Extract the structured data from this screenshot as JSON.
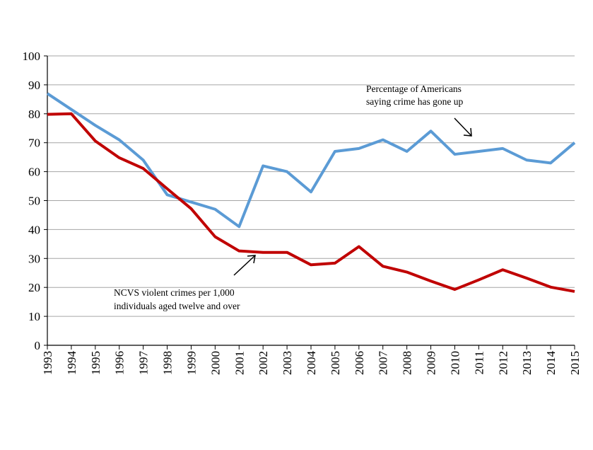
{
  "chart_data": {
    "type": "line",
    "x": [
      1993,
      1994,
      1995,
      1996,
      1997,
      1998,
      1999,
      2000,
      2001,
      2002,
      2003,
      2004,
      2005,
      2006,
      2007,
      2008,
      2009,
      2010,
      2011,
      2012,
      2013,
      2014,
      2015
    ],
    "ylim": [
      0,
      100
    ],
    "yticks": [
      0,
      10,
      20,
      30,
      40,
      50,
      60,
      70,
      80,
      90,
      100
    ],
    "grid": true,
    "legend": "none",
    "series": [
      {
        "name": "Percentage of Americans saying crime has gone up",
        "color": "#5B9BD5",
        "values": [
          87,
          81.5,
          76,
          71,
          64,
          52,
          49.5,
          47,
          41,
          62,
          60,
          53,
          67,
          68,
          71,
          67,
          74,
          66,
          67,
          68,
          64,
          63,
          70
        ]
      },
      {
        "name": "NCVS violent crimes per 1,000 individuals aged twelve and over",
        "color": "#C00000",
        "values": [
          79.8,
          80,
          70.6,
          64.8,
          61.1,
          54.1,
          47.2,
          37.5,
          32.6,
          32.1,
          32.1,
          27.8,
          28.4,
          34.1,
          27.3,
          25.3,
          22.2,
          19.3,
          22.6,
          26.1,
          23.2,
          20.1,
          18.6
        ]
      }
    ],
    "annotations": [
      {
        "series": 0,
        "lines": [
          "Percentage of Americans",
          "saying crime has gone up"
        ]
      },
      {
        "series": 1,
        "lines": [
          "NCVS violent crimes per 1,000",
          "individuals aged twelve and over"
        ]
      }
    ]
  }
}
